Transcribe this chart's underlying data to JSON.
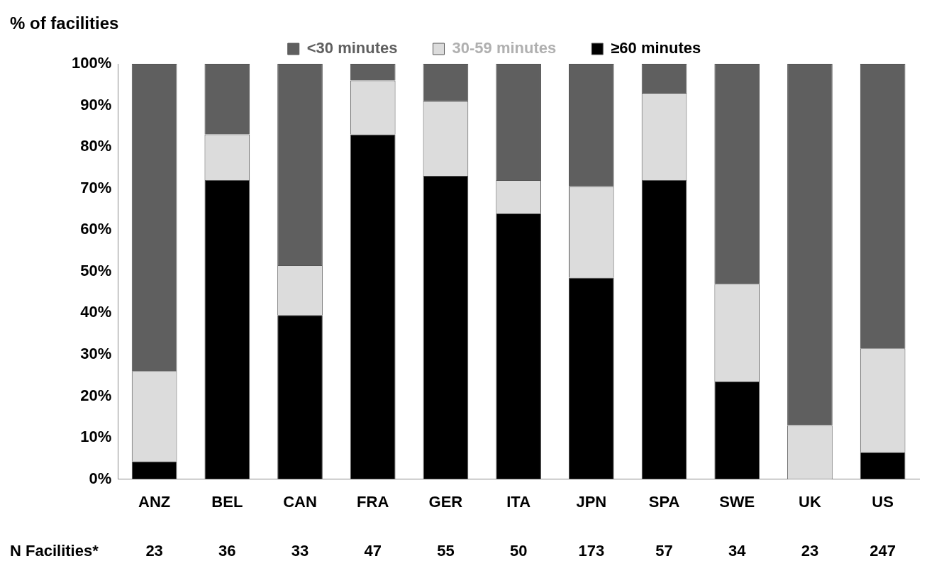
{
  "chart_data": {
    "type": "bar",
    "ylabel": "% of facilities",
    "categories": [
      "ANZ",
      "BEL",
      "CAN",
      "FRA",
      "GER",
      "ITA",
      "JPN",
      "SPA",
      "SWE",
      "UK",
      "US"
    ],
    "series": [
      {
        "name": "≥60 minutes",
        "color": "#000000",
        "values": [
          4.3,
          72,
          39.5,
          83,
          73,
          64,
          48.5,
          72,
          23.5,
          0,
          6.5
        ]
      },
      {
        "name": "30-59 minutes",
        "color": "#dcdcdc",
        "values": [
          21.7,
          11,
          12,
          13,
          18,
          8,
          22,
          21,
          23.5,
          13,
          25
        ]
      },
      {
        "name": "<30 minutes",
        "color": "#5f5f5f",
        "values": [
          74,
          17,
          48.5,
          4,
          9,
          28,
          29.5,
          7,
          53,
          87,
          68.5
        ]
      }
    ],
    "stacked": true,
    "ylim": [
      0,
      100
    ],
    "yticks": [
      {
        "value": 0,
        "label": "0%"
      },
      {
        "value": 10,
        "label": "10%"
      },
      {
        "value": 20,
        "label": "20%"
      },
      {
        "value": 30,
        "label": "30%"
      },
      {
        "value": 40,
        "label": "40%"
      },
      {
        "value": 50,
        "label": "50%"
      },
      {
        "value": 60,
        "label": "60%"
      },
      {
        "value": 70,
        "label": "70%"
      },
      {
        "value": 80,
        "label": "80%"
      },
      {
        "value": 90,
        "label": "90%"
      },
      {
        "value": 100,
        "label": "100%"
      }
    ],
    "grid": false,
    "legend": "top",
    "annotations": [
      "N Facilities*",
      "23",
      "36",
      "33",
      "47",
      "55",
      "50",
      "173",
      "57",
      "34",
      "23",
      "247"
    ]
  }
}
